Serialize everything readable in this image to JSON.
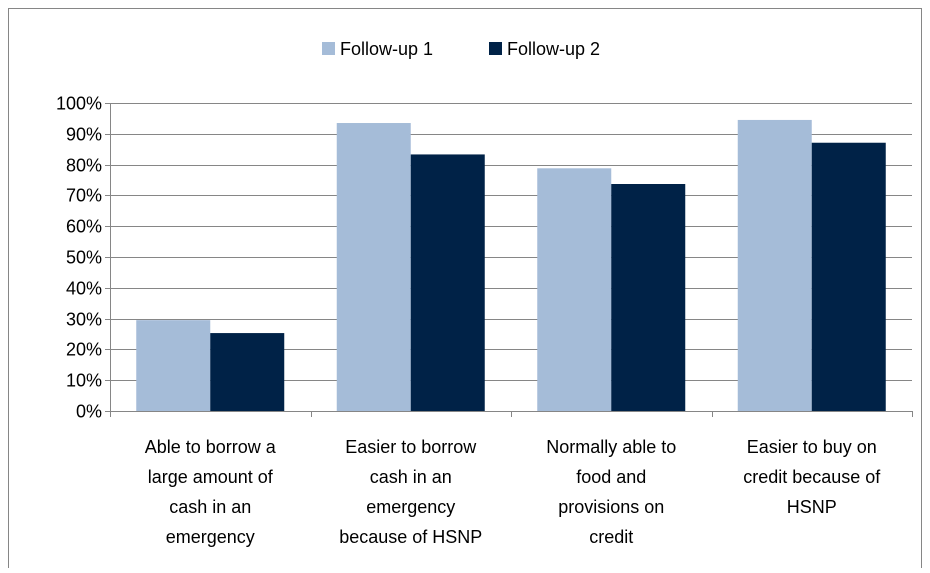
{
  "chart_data": {
    "type": "bar",
    "title": "",
    "xlabel": "",
    "ylabel": "",
    "categories": [
      [
        "Able to borrow a",
        "large amount of",
        "cash in an",
        "emergency"
      ],
      [
        "Easier to borrow",
        "cash in an",
        "emergency",
        "because of HSNP"
      ],
      [
        "Normally able to",
        "food and",
        "provisions on",
        "credit"
      ],
      [
        "Easier to buy on",
        "credit because of",
        "HSNP"
      ]
    ],
    "series": [
      {
        "name": "Follow-up 1",
        "color": "#a5bcd8",
        "values": [
          29.5,
          93.5,
          78.8,
          94.5
        ]
      },
      {
        "name": "Follow-up 2",
        "color": "#002247",
        "values": [
          25.3,
          83.3,
          73.7,
          87.1
        ]
      }
    ],
    "ylim": [
      0,
      100
    ],
    "yticks": [
      "0%",
      "10%",
      "20%",
      "30%",
      "40%",
      "50%",
      "60%",
      "70%",
      "80%",
      "90%",
      "100%"
    ],
    "legend_position": "top",
    "grid": true,
    "gridline_color": "#868686",
    "border_color": "#868686"
  }
}
